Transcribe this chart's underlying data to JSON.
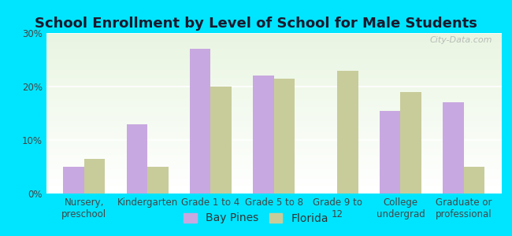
{
  "title": "School Enrollment by Level of School for Male Students",
  "categories": [
    "Nursery,\npreschool",
    "Kindergarten",
    "Grade 1 to 4",
    "Grade 5 to 8",
    "Grade 9 to\n12",
    "College\nundergrad",
    "Graduate or\nprofessional"
  ],
  "bay_pines": [
    5,
    13,
    27,
    22,
    0,
    15.5,
    17
  ],
  "florida": [
    6.5,
    5,
    20,
    21.5,
    23,
    19,
    5
  ],
  "bar_color_bp": "#c8a8e0",
  "bar_color_fl": "#c8cc9a",
  "bg_outer": "#00e5ff",
  "bg_plot_top": "#e8f5e0",
  "bg_plot_bottom": "#ffffff",
  "title_fontsize": 13,
  "tick_fontsize": 8.5,
  "legend_fontsize": 10,
  "ylim": [
    0,
    30
  ],
  "yticks": [
    0,
    10,
    20,
    30
  ],
  "watermark": "City-Data.com"
}
